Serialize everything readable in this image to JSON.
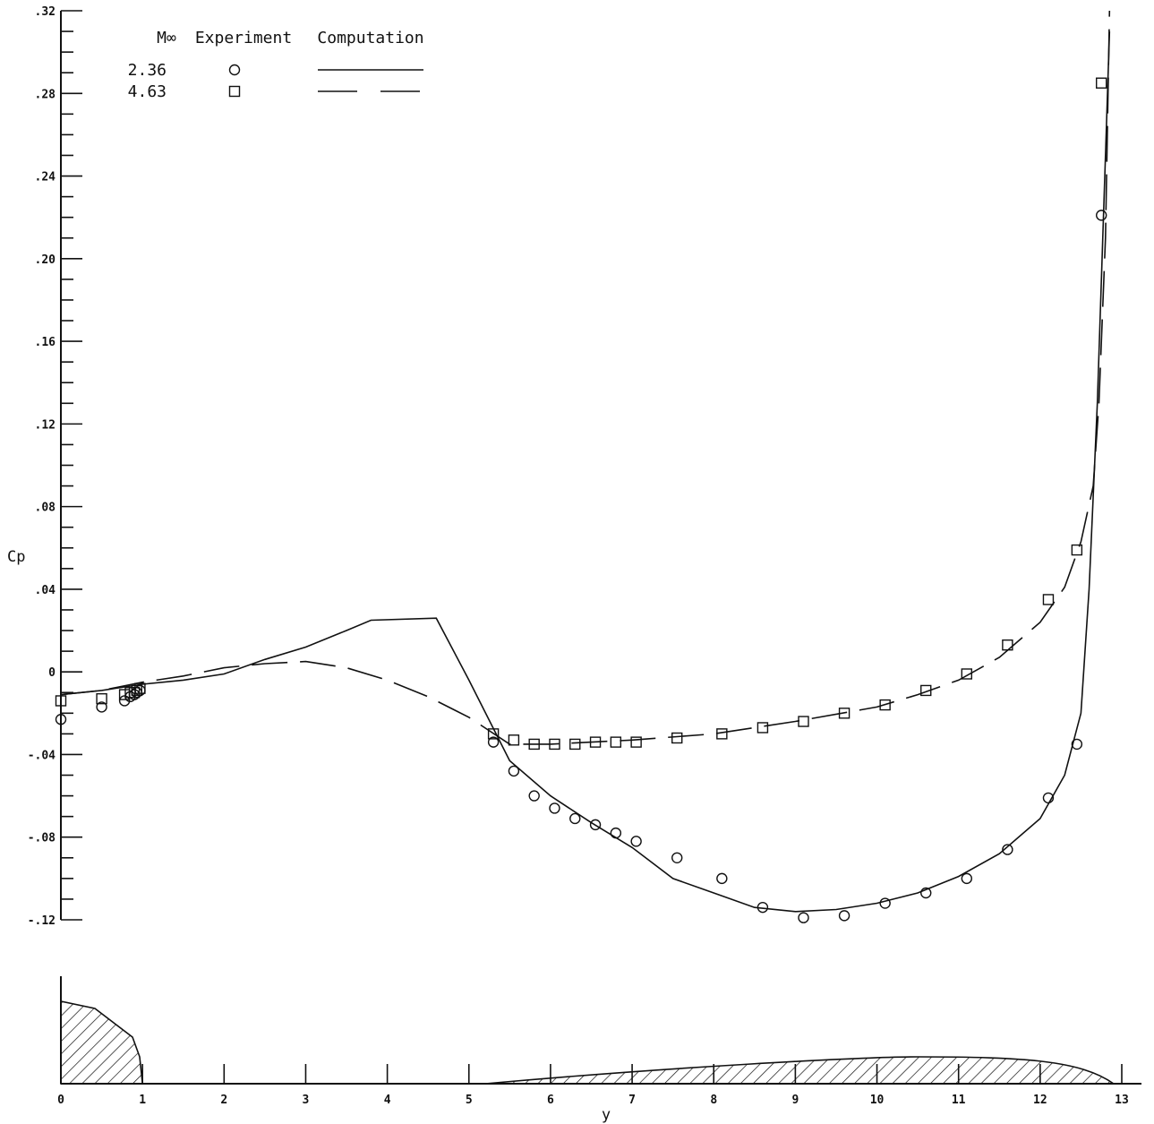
{
  "chart_data": {
    "type": "scatter",
    "xlabel": "y",
    "ylabel": "Cp",
    "xlim": [
      0,
      13
    ],
    "ylim": [
      -0.12,
      0.32
    ],
    "y_ticks": [
      -0.12,
      -0.08,
      -0.04,
      0,
      0.04,
      0.08,
      0.12,
      0.16,
      0.2,
      0.24,
      0.28,
      0.32
    ],
    "y_tick_labels": [
      "-.12",
      "-.08",
      "-.04",
      "0",
      ".04",
      ".08",
      ".12",
      ".16",
      ".20",
      ".24",
      ".28",
      ".32"
    ],
    "x_ticks": [
      0,
      1,
      2,
      3,
      4,
      5,
      6,
      7,
      8,
      9,
      10,
      11,
      12,
      13
    ],
    "x_tick_labels": [
      "0",
      "1",
      "2",
      "3",
      "4",
      "5",
      "6",
      "7",
      "8",
      "9",
      "10",
      "11",
      "12",
      "13"
    ],
    "legend": {
      "headers": [
        "M∞",
        "Experiment",
        "Computation"
      ],
      "rows": [
        {
          "mach": "2.36",
          "marker": "circle",
          "line": "solid"
        },
        {
          "mach": "4.63",
          "marker": "square",
          "line": "dashed"
        }
      ],
      "placement": "top-left"
    },
    "grid": false,
    "series": [
      {
        "mach": "2.36",
        "kind": "experiment",
        "marker": "circle",
        "points": [
          [
            0.0,
            -0.023
          ],
          [
            0.5,
            -0.017
          ],
          [
            0.78,
            -0.014
          ],
          [
            0.85,
            -0.012
          ],
          [
            0.9,
            -0.011
          ],
          [
            0.93,
            -0.01
          ],
          [
            0.97,
            -0.009
          ],
          [
            5.3,
            -0.034
          ],
          [
            5.55,
            -0.048
          ],
          [
            5.8,
            -0.06
          ],
          [
            6.05,
            -0.066
          ],
          [
            6.3,
            -0.071
          ],
          [
            6.55,
            -0.074
          ],
          [
            6.8,
            -0.078
          ],
          [
            7.05,
            -0.082
          ],
          [
            7.55,
            -0.09
          ],
          [
            8.1,
            -0.1
          ],
          [
            8.6,
            -0.114
          ],
          [
            9.1,
            -0.119
          ],
          [
            9.6,
            -0.118
          ],
          [
            10.1,
            -0.112
          ],
          [
            10.6,
            -0.107
          ],
          [
            11.1,
            -0.1
          ],
          [
            11.6,
            -0.086
          ],
          [
            12.1,
            -0.061
          ],
          [
            12.45,
            -0.035
          ],
          [
            12.75,
            0.221
          ]
        ]
      },
      {
        "mach": "4.63",
        "kind": "experiment",
        "marker": "square",
        "points": [
          [
            0.0,
            -0.014
          ],
          [
            0.5,
            -0.013
          ],
          [
            0.78,
            -0.011
          ],
          [
            0.85,
            -0.01
          ],
          [
            0.9,
            -0.01
          ],
          [
            0.93,
            -0.009
          ],
          [
            0.97,
            -0.008
          ],
          [
            5.3,
            -0.03
          ],
          [
            5.55,
            -0.033
          ],
          [
            5.8,
            -0.035
          ],
          [
            6.05,
            -0.035
          ],
          [
            6.3,
            -0.035
          ],
          [
            6.55,
            -0.034
          ],
          [
            6.8,
            -0.034
          ],
          [
            7.05,
            -0.034
          ],
          [
            7.55,
            -0.032
          ],
          [
            8.1,
            -0.03
          ],
          [
            8.6,
            -0.027
          ],
          [
            9.1,
            -0.024
          ],
          [
            9.6,
            -0.02
          ],
          [
            10.1,
            -0.016
          ],
          [
            10.6,
            -0.009
          ],
          [
            11.1,
            -0.001
          ],
          [
            11.6,
            0.013
          ],
          [
            12.1,
            0.035
          ],
          [
            12.45,
            0.059
          ],
          [
            12.75,
            0.285
          ]
        ]
      },
      {
        "mach": "2.36",
        "kind": "computation",
        "line": "solid",
        "points": [
          [
            0.0,
            -0.011
          ],
          [
            0.5,
            -0.009
          ],
          [
            1.0,
            -0.006
          ],
          [
            1.5,
            -0.004
          ],
          [
            2.0,
            -0.001
          ],
          [
            2.5,
            0.006
          ],
          [
            3.0,
            0.012
          ],
          [
            3.5,
            0.02
          ],
          [
            3.8,
            0.025
          ],
          [
            4.6,
            0.026
          ],
          [
            5.0,
            -0.004
          ],
          [
            5.5,
            -0.043
          ],
          [
            6.0,
            -0.06
          ],
          [
            6.5,
            -0.073
          ],
          [
            7.0,
            -0.085
          ],
          [
            7.5,
            -0.1
          ],
          [
            8.0,
            -0.107
          ],
          [
            8.5,
            -0.114
          ],
          [
            9.0,
            -0.116
          ],
          [
            9.5,
            -0.115
          ],
          [
            10.0,
            -0.112
          ],
          [
            10.5,
            -0.107
          ],
          [
            11.0,
            -0.099
          ],
          [
            11.5,
            -0.088
          ],
          [
            12.0,
            -0.071
          ],
          [
            12.3,
            -0.05
          ],
          [
            12.5,
            -0.02
          ],
          [
            12.6,
            0.04
          ],
          [
            12.7,
            0.13
          ],
          [
            12.8,
            0.25
          ],
          [
            12.85,
            0.31
          ]
        ]
      },
      {
        "mach": "4.63",
        "kind": "computation",
        "line": "dashed",
        "points": [
          [
            0.0,
            -0.011
          ],
          [
            0.5,
            -0.009
          ],
          [
            1.0,
            -0.005
          ],
          [
            1.5,
            -0.002
          ],
          [
            2.0,
            0.002
          ],
          [
            2.5,
            0.004
          ],
          [
            3.0,
            0.005
          ],
          [
            3.5,
            0.002
          ],
          [
            4.0,
            -0.004
          ],
          [
            4.5,
            -0.012
          ],
          [
            5.0,
            -0.022
          ],
          [
            5.5,
            -0.035
          ],
          [
            6.0,
            -0.035
          ],
          [
            7.0,
            -0.033
          ],
          [
            8.0,
            -0.03
          ],
          [
            9.0,
            -0.024
          ],
          [
            10.0,
            -0.017
          ],
          [
            10.5,
            -0.011
          ],
          [
            11.0,
            -0.004
          ],
          [
            11.5,
            0.007
          ],
          [
            12.0,
            0.024
          ],
          [
            12.3,
            0.041
          ],
          [
            12.5,
            0.063
          ],
          [
            12.65,
            0.09
          ],
          [
            12.72,
            0.13
          ],
          [
            12.8,
            0.21
          ],
          [
            12.85,
            0.32
          ]
        ]
      }
    ]
  }
}
